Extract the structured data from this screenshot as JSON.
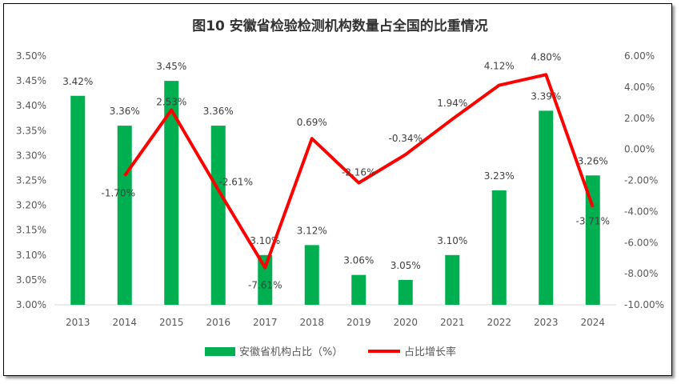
{
  "chart_data": {
    "type": "bar+line",
    "title": "图10  安徽省检验检测机构数量占全国的比重情况",
    "categories": [
      "2013",
      "2014",
      "2015",
      "2016",
      "2017",
      "2018",
      "2019",
      "2020",
      "2021",
      "2022",
      "2023",
      "2024"
    ],
    "series": [
      {
        "name": "安徽省机构占比（%）",
        "type": "bar",
        "axis": "left",
        "color": "#00B050",
        "values": [
          3.42,
          3.36,
          3.45,
          3.36,
          3.1,
          3.12,
          3.06,
          3.05,
          3.1,
          3.23,
          3.39,
          3.26
        ],
        "labels": [
          "3.42%",
          "3.36%",
          "3.45%",
          "3.36%",
          "3.10%",
          "3.12%",
          "3.06%",
          "3.05%",
          "3.10%",
          "3.23%",
          "3.39%",
          "3.26%"
        ]
      },
      {
        "name": "占比增长率",
        "type": "line",
        "axis": "right",
        "color": "#FF0000",
        "values": [
          null,
          -1.7,
          2.53,
          -2.61,
          -7.61,
          0.69,
          -2.16,
          -0.34,
          1.94,
          4.12,
          4.8,
          -3.71
        ],
        "labels": [
          null,
          "-1.70%",
          "2.53%",
          "-2.61%",
          "-7.61%",
          "0.69%",
          "-2.16%",
          "-0.34%",
          "1.94%",
          "4.12%",
          "4.80%",
          "-3.71%"
        ]
      }
    ],
    "left_axis": {
      "ylim": [
        3.0,
        3.5
      ],
      "ticks": [
        "3.00%",
        "3.05%",
        "3.10%",
        "3.15%",
        "3.20%",
        "3.25%",
        "3.30%",
        "3.35%",
        "3.40%",
        "3.45%",
        "3.50%"
      ]
    },
    "right_axis": {
      "ylim": [
        -10,
        6
      ],
      "ticks": [
        "-10.00%",
        "-8.00%",
        "-6.00%",
        "-4.00%",
        "-2.00%",
        "0.00%",
        "2.00%",
        "4.00%",
        "6.00%"
      ]
    },
    "grid": false,
    "legend": "bottom"
  }
}
